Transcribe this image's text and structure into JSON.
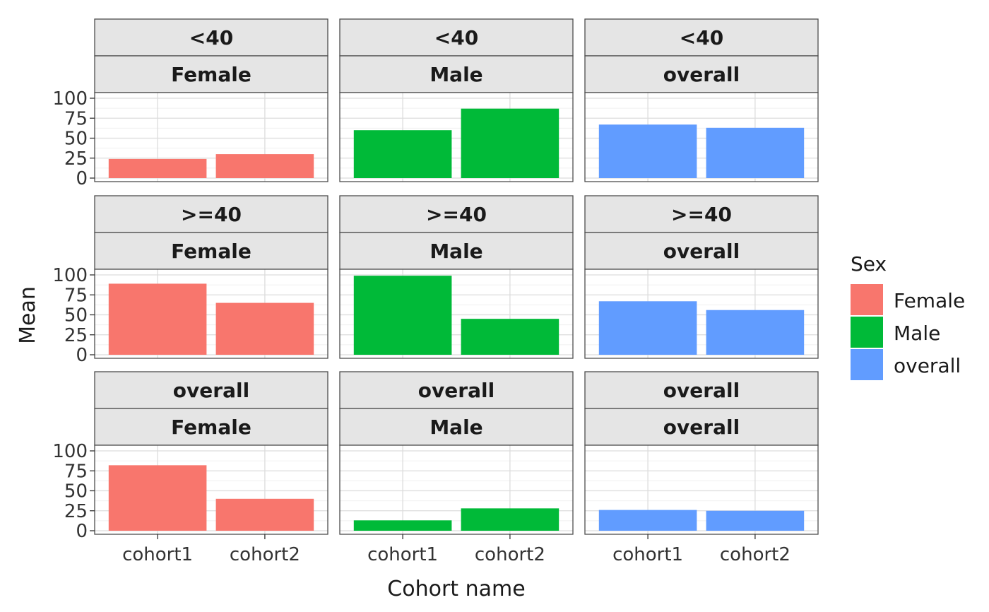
{
  "chart_data": {
    "type": "bar",
    "xlabel": "Cohort name",
    "ylabel": "Mean",
    "ylim": [
      0,
      100
    ],
    "yticks": [
      "0",
      "25",
      "50",
      "75",
      "100"
    ],
    "categories": [
      "cohort1",
      "cohort2"
    ],
    "grid": true,
    "legend": {
      "title": "Sex",
      "placement": "right",
      "entries": [
        {
          "name": "Female",
          "color": "#F8766D"
        },
        {
          "name": "Male",
          "color": "#00BA38"
        },
        {
          "name": "overall",
          "color": "#619CFF"
        }
      ]
    },
    "facet_rows": [
      "<40",
      ">=40",
      "overall"
    ],
    "facet_cols": [
      "Female",
      "Male",
      "overall"
    ],
    "panels": [
      {
        "age": "<40",
        "sex": "Female",
        "values": [
          24,
          30
        ]
      },
      {
        "age": "<40",
        "sex": "Male",
        "values": [
          60,
          87
        ]
      },
      {
        "age": "<40",
        "sex": "overall",
        "values": [
          67,
          63
        ]
      },
      {
        "age": ">=40",
        "sex": "Female",
        "values": [
          89,
          65
        ]
      },
      {
        "age": ">=40",
        "sex": "Male",
        "values": [
          99,
          45
        ]
      },
      {
        "age": ">=40",
        "sex": "overall",
        "values": [
          67,
          56
        ]
      },
      {
        "age": "overall",
        "sex": "Female",
        "values": [
          82,
          40
        ]
      },
      {
        "age": "overall",
        "sex": "Male",
        "values": [
          13,
          28
        ]
      },
      {
        "age": "overall",
        "sex": "overall",
        "values": [
          26,
          25
        ]
      }
    ]
  }
}
